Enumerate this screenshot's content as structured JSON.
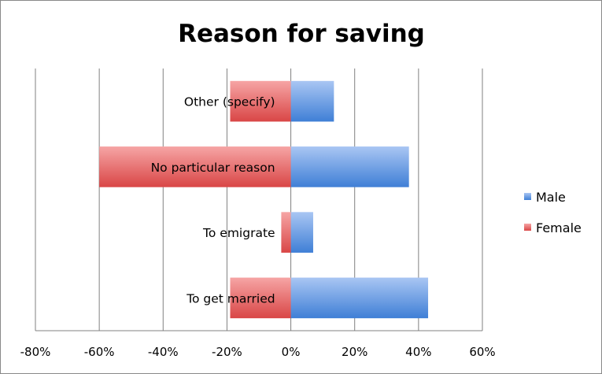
{
  "colors": {
    "male_light": "#a9c6f3",
    "male_dark": "#3f7fd6",
    "female_light": "#f6a5a5",
    "female_dark": "#d94646",
    "gridline": "#808080",
    "axis": "#808080"
  },
  "chart_data": {
    "type": "bar",
    "orientation": "horizontal",
    "stacked": true,
    "title": "Reason for saving",
    "categories": [
      "To get married",
      "To emigrate",
      "No particular reason",
      "Other (specify)"
    ],
    "series": [
      {
        "name": "Male",
        "values": [
          0.43,
          0.07,
          0.37,
          0.135
        ]
      },
      {
        "name": "Female",
        "values": [
          -0.19,
          -0.03,
          -0.6,
          -0.19
        ]
      }
    ],
    "xlim": [
      -0.8,
      0.6
    ],
    "xticks": [
      "-80%",
      "-60%",
      "-40%",
      "-20%",
      "0%",
      "20%",
      "40%",
      "60%"
    ],
    "grid": "vertical major gridlines",
    "legend": "right",
    "legend_entries": [
      "Male",
      "Female"
    ],
    "xlabel": "",
    "ylabel": ""
  }
}
